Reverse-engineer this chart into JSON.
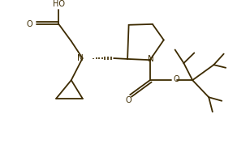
{
  "bg_color": "#ffffff",
  "line_color": "#3d2b00",
  "text_color": "#3d2b00",
  "figsize": [
    3.08,
    1.88
  ],
  "dpi": 100,
  "lw": 1.3,
  "xlim": [
    0,
    10
  ],
  "ylim": [
    0,
    6.1
  ]
}
